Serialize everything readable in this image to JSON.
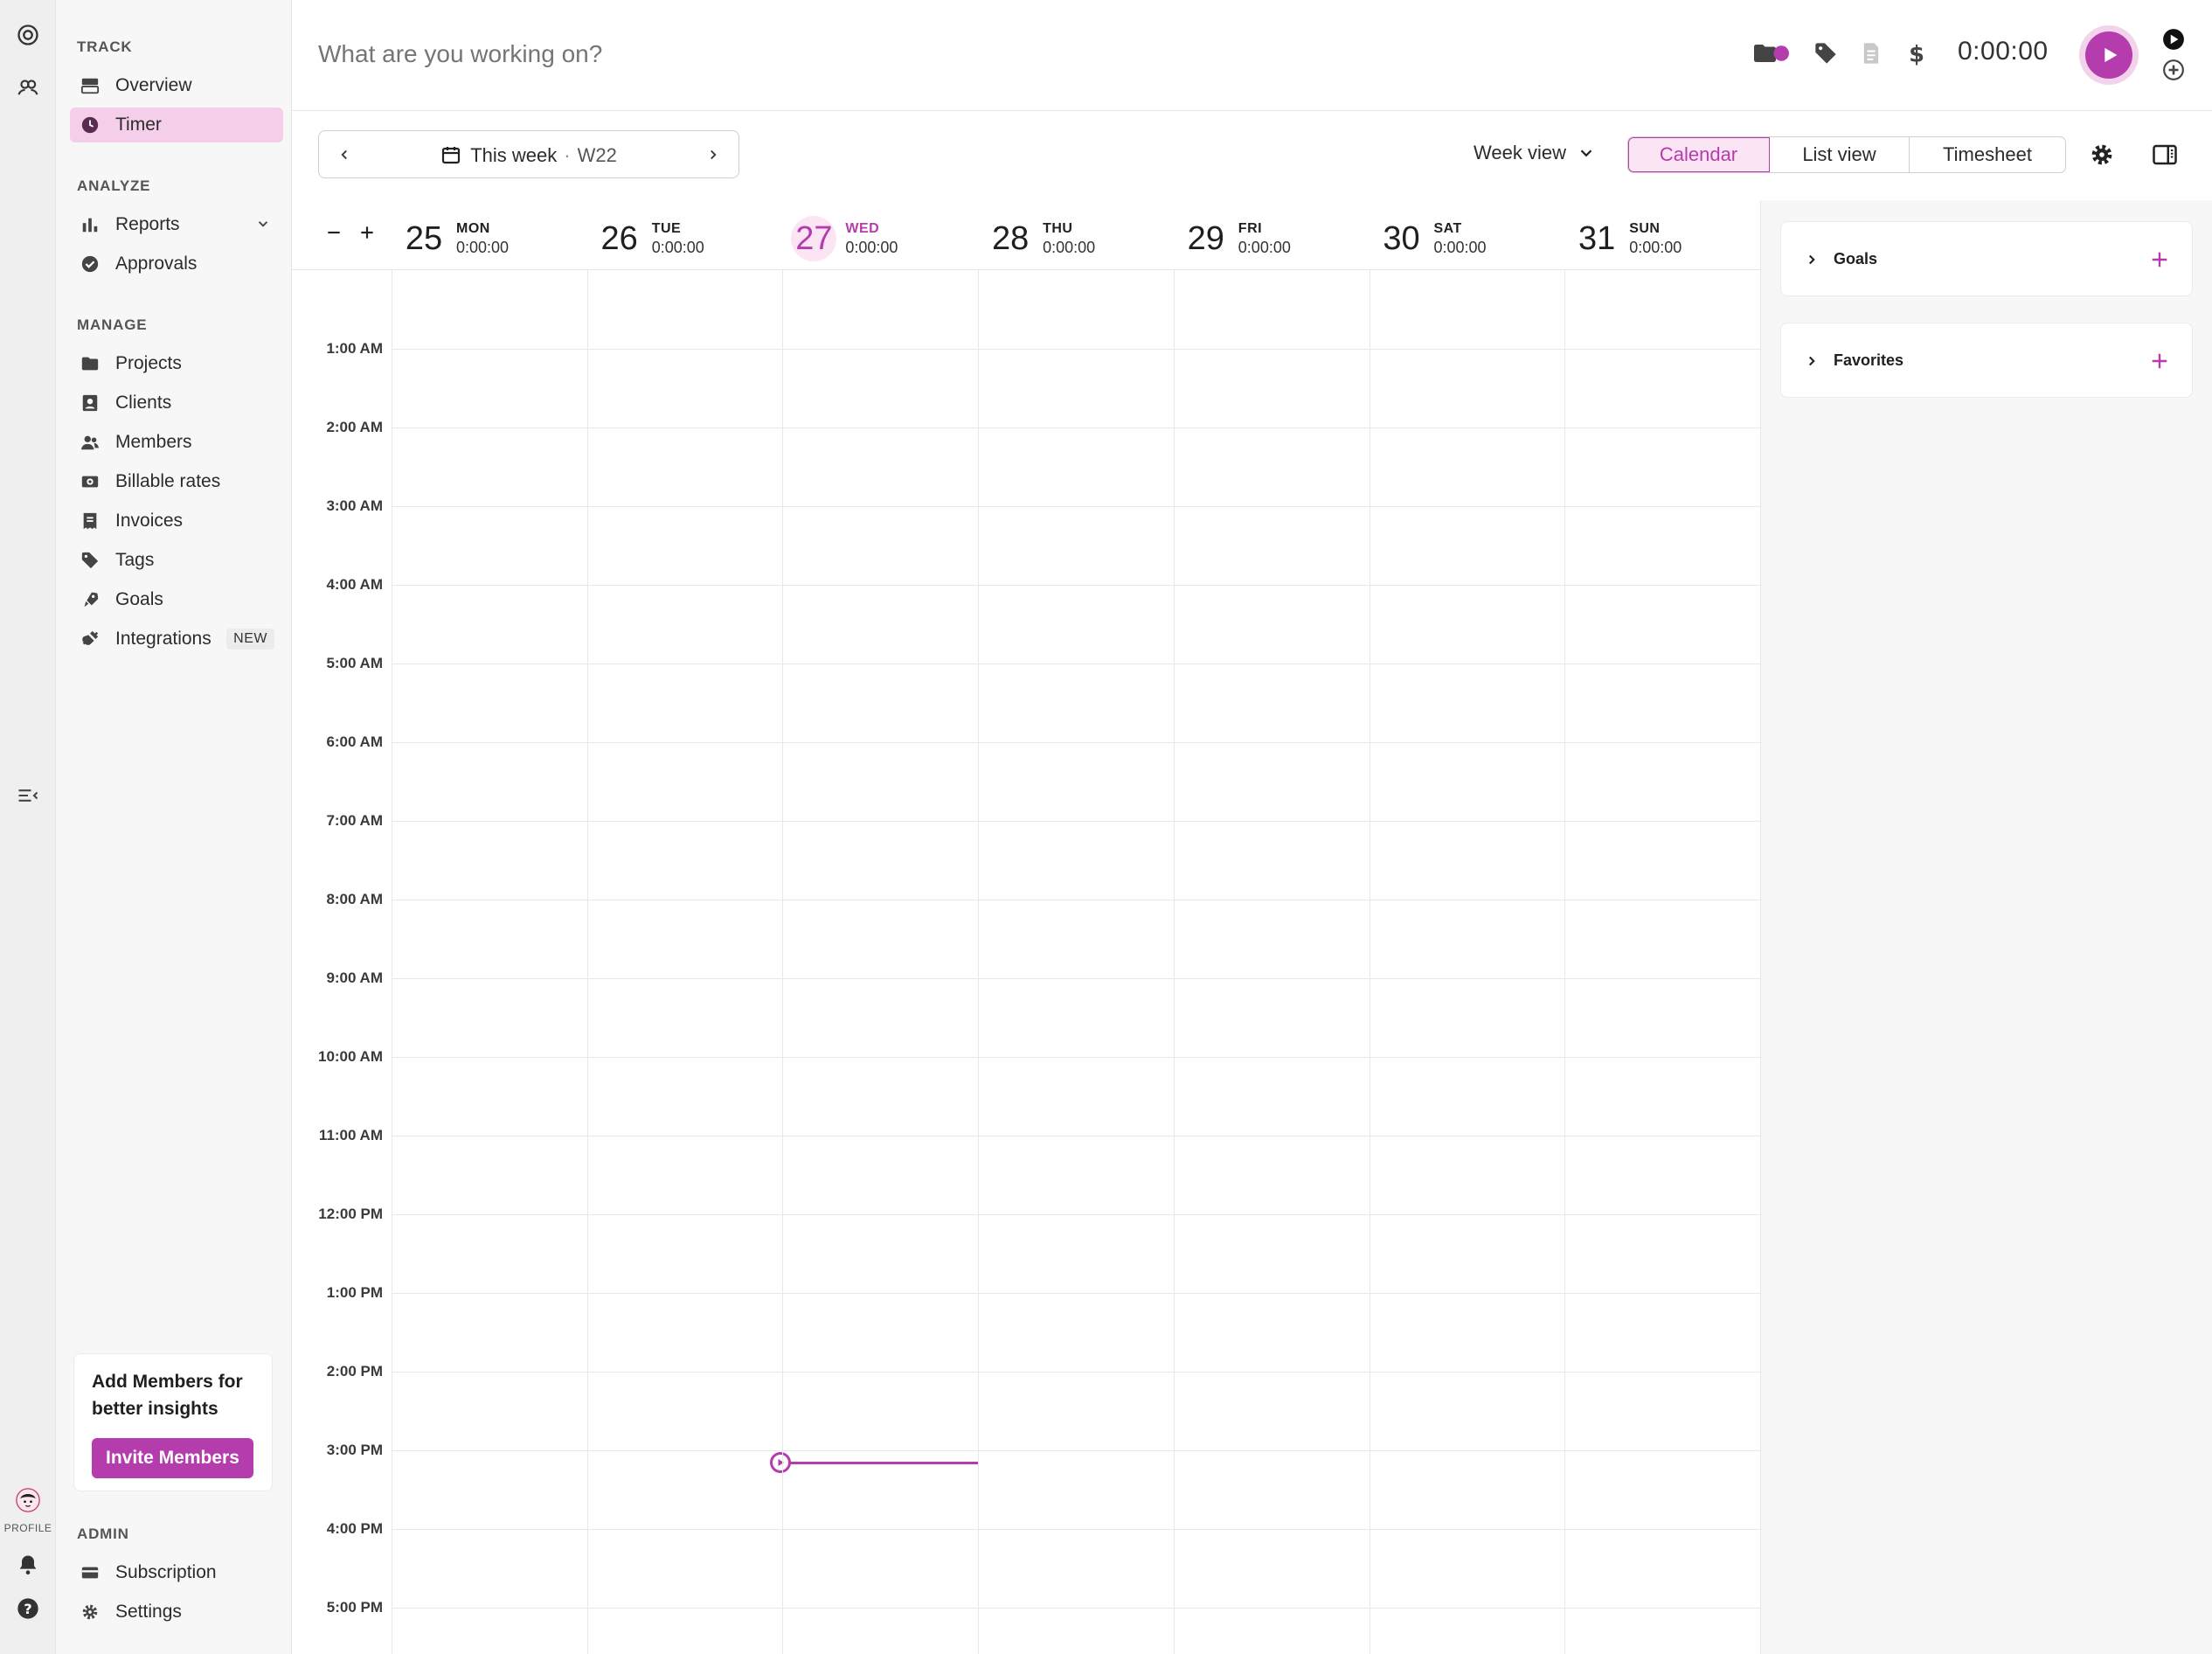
{
  "colors": {
    "accent": "#b53cad",
    "accent_soft": "#f5cfe9"
  },
  "rail": {
    "profile_label": "PROFILE"
  },
  "sidebar": {
    "sections": {
      "track": "TRACK",
      "analyze": "ANALYZE",
      "manage": "MANAGE",
      "admin": "ADMIN"
    },
    "items": {
      "overview": "Overview",
      "timer": "Timer",
      "reports": "Reports",
      "approvals": "Approvals",
      "projects": "Projects",
      "clients": "Clients",
      "members": "Members",
      "billable_rates": "Billable rates",
      "invoices": "Invoices",
      "tags": "Tags",
      "goals": "Goals",
      "integrations": "Integrations",
      "integrations_badge": "NEW",
      "subscription": "Subscription",
      "settings": "Settings"
    },
    "promo": {
      "text": "Add Members for better insights",
      "button": "Invite Members"
    }
  },
  "topbar": {
    "placeholder": "What are you working on?",
    "timer": "0:00:00"
  },
  "toolbar": {
    "week_label": "This week",
    "week_number": "W22",
    "view_dropdown": "Week view",
    "views": [
      "Calendar",
      "List view",
      "Timesheet"
    ],
    "active_view": "Calendar"
  },
  "calendar": {
    "days": [
      {
        "num": "25",
        "name": "MON",
        "total": "0:00:00"
      },
      {
        "num": "26",
        "name": "TUE",
        "total": "0:00:00"
      },
      {
        "num": "27",
        "name": "WED",
        "total": "0:00:00",
        "today": true
      },
      {
        "num": "28",
        "name": "THU",
        "total": "0:00:00"
      },
      {
        "num": "29",
        "name": "FRI",
        "total": "0:00:00"
      },
      {
        "num": "30",
        "name": "SAT",
        "total": "0:00:00"
      },
      {
        "num": "31",
        "name": "SUN",
        "total": "0:00:00"
      }
    ],
    "hours": [
      "1:00 AM",
      "2:00 AM",
      "3:00 AM",
      "4:00 AM",
      "5:00 AM",
      "6:00 AM",
      "7:00 AM",
      "8:00 AM",
      "9:00 AM",
      "10:00 AM",
      "11:00 AM",
      "12:00 PM",
      "1:00 PM",
      "2:00 PM",
      "3:00 PM",
      "4:00 PM",
      "5:00 PM"
    ]
  },
  "rpanel": {
    "goals": "Goals",
    "favorites": "Favorites"
  }
}
